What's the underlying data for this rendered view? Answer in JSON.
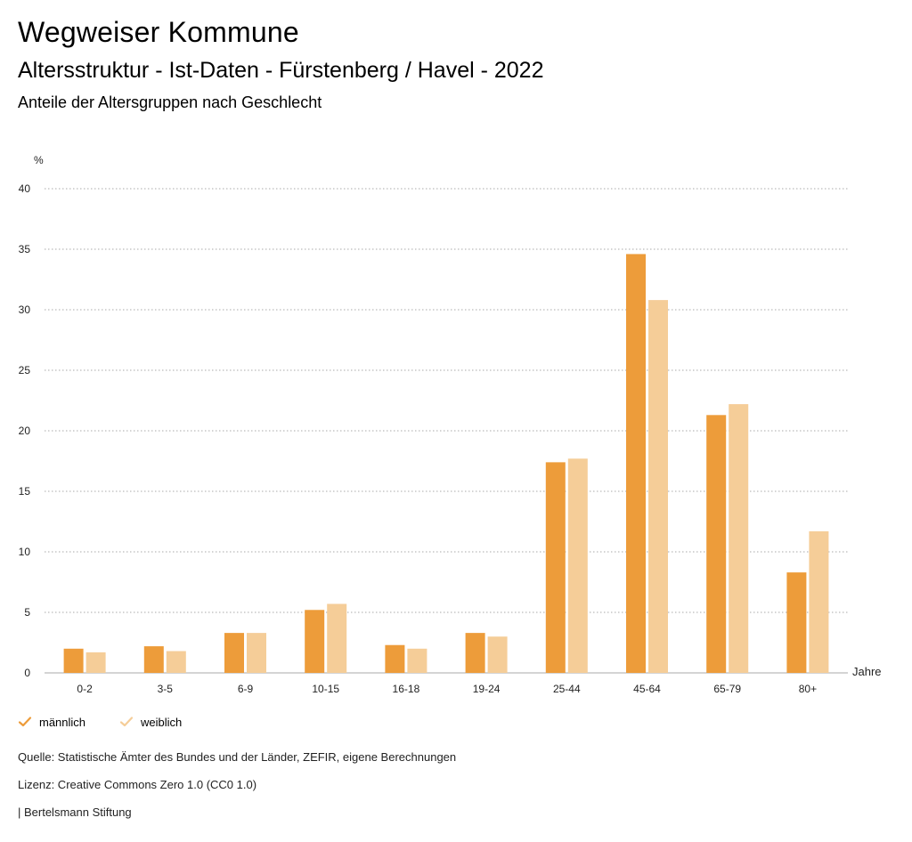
{
  "header": {
    "title": "Wegweiser Kommune",
    "subtitle": "Altersstruktur - Ist-Daten - Fürstenberg / Havel - 2022",
    "description": "Anteile der Altersgruppen nach Geschlecht"
  },
  "colors": {
    "male": "#ED9C3A",
    "female": "#F5CD98",
    "grid": "#aaaaaa"
  },
  "chart_data": {
    "type": "bar",
    "ylabel": "%",
    "xlabel": "Jahre",
    "ylim": [
      0,
      40
    ],
    "yticks": [
      0,
      5,
      10,
      15,
      20,
      25,
      30,
      35,
      40
    ],
    "grid": true,
    "legend_position": "bottom-left",
    "categories": [
      "0-2",
      "3-5",
      "6-9",
      "10-15",
      "16-18",
      "19-24",
      "25-44",
      "45-64",
      "65-79",
      "80+"
    ],
    "series": [
      {
        "name": "männlich",
        "values": [
          2.0,
          2.2,
          3.3,
          5.2,
          2.3,
          3.3,
          17.4,
          34.6,
          21.3,
          8.3
        ]
      },
      {
        "name": "weiblich",
        "values": [
          1.7,
          1.8,
          3.3,
          5.7,
          2.0,
          3.0,
          17.7,
          30.8,
          22.2,
          11.7
        ]
      }
    ]
  },
  "footer": {
    "source": "Quelle: Statistische Ämter des Bundes und der Länder, ZEFIR, eigene Berechnungen",
    "license": "Lizenz: Creative Commons Zero 1.0 (CC0 1.0)",
    "publisher": "| Bertelsmann Stiftung"
  }
}
